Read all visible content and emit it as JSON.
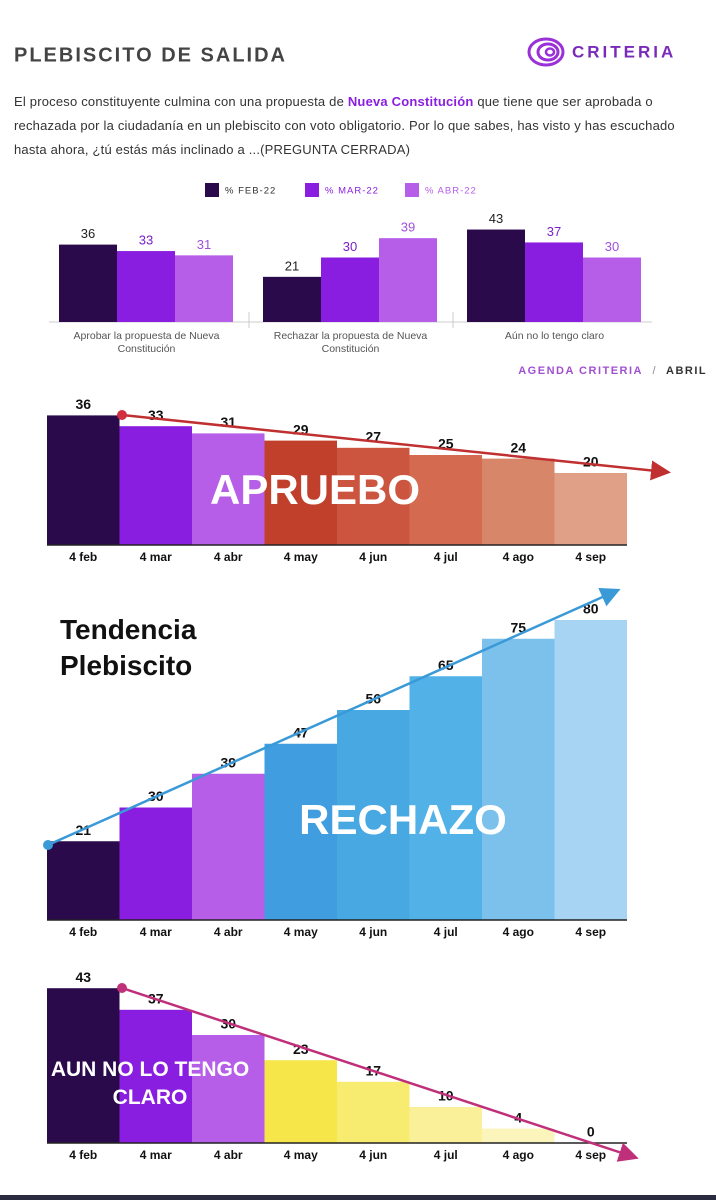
{
  "header": {
    "title": "PLEBISCITO DE SALIDA",
    "logo": "CRITERIA"
  },
  "question": [
    "El proceso constituyente culmina con una propuesta de ",
    "Nueva Constitución",
    " que tiene que ser aprobada o rechazada por la ciudadanía en un plebiscito con voto obligatorio. Por lo que sabes, has visto y has escuchado hasta ahora, ¿tú estás más inclinado a ...(PREGUNTA CERRADA)"
  ],
  "source": {
    "name": "AGENDA CRITERIA",
    "separator": "/",
    "period": "ABRIL"
  },
  "trend_title": "Tendencia Plebiscito",
  "chart_data": [
    {
      "type": "bar",
      "categories": [
        "Aprobar la propuesta de Nueva Constitución",
        "Rechazar la propuesta de Nueva Constitución",
        "Aún no lo tengo claro"
      ],
      "series": [
        {
          "name": "% FEB-22",
          "color": "#2a0a4a",
          "values": [
            36,
            21,
            43
          ]
        },
        {
          "name": "% MAR-22",
          "color": "#8a1ee0",
          "values": [
            33,
            30,
            37
          ]
        },
        {
          "name": "% ABR-22",
          "color": "#b65ee8",
          "values": [
            31,
            39,
            30
          ]
        }
      ]
    },
    {
      "type": "bar",
      "label": "APRUEBO",
      "categories": [
        "4 feb",
        "4 mar",
        "4 abr",
        "4 may",
        "4 jun",
        "4 jul",
        "4 ago",
        "4 sep"
      ],
      "values": [
        36,
        33,
        31,
        29,
        27,
        25,
        24,
        20
      ],
      "colors": [
        "#2a0a4a",
        "#8a1ee0",
        "#b65ee8",
        "#c0402c",
        "#cc5540",
        "#d46a50",
        "#d8866a",
        "#e0a088"
      ]
    },
    {
      "type": "bar",
      "label": "RECHAZO",
      "categories": [
        "4 feb",
        "4 mar",
        "4 abr",
        "4 may",
        "4 jun",
        "4 jul",
        "4 ago",
        "4 sep"
      ],
      "values": [
        21,
        30,
        39,
        47,
        56,
        65,
        75,
        80
      ],
      "colors": [
        "#2a0a4a",
        "#8a1ee0",
        "#b65ee8",
        "#3f9de0",
        "#48a8e2",
        "#52b2e8",
        "#7cc0ec",
        "#a6d4f2"
      ]
    },
    {
      "type": "bar",
      "label": "AUN NO LO TENGO CLARO",
      "categories": [
        "4 feb",
        "4 mar",
        "4 abr",
        "4 may",
        "4 jun",
        "4 jul",
        "4 ago",
        "4 sep"
      ],
      "values": [
        43,
        37,
        30,
        23,
        17,
        10,
        4,
        0
      ],
      "colors": [
        "#2a0a4a",
        "#8a1ee0",
        "#b65ee8",
        "#f6e64a",
        "#f8ec70",
        "#faf09a",
        "#fbf4bb",
        "#fdf8d8"
      ]
    }
  ]
}
